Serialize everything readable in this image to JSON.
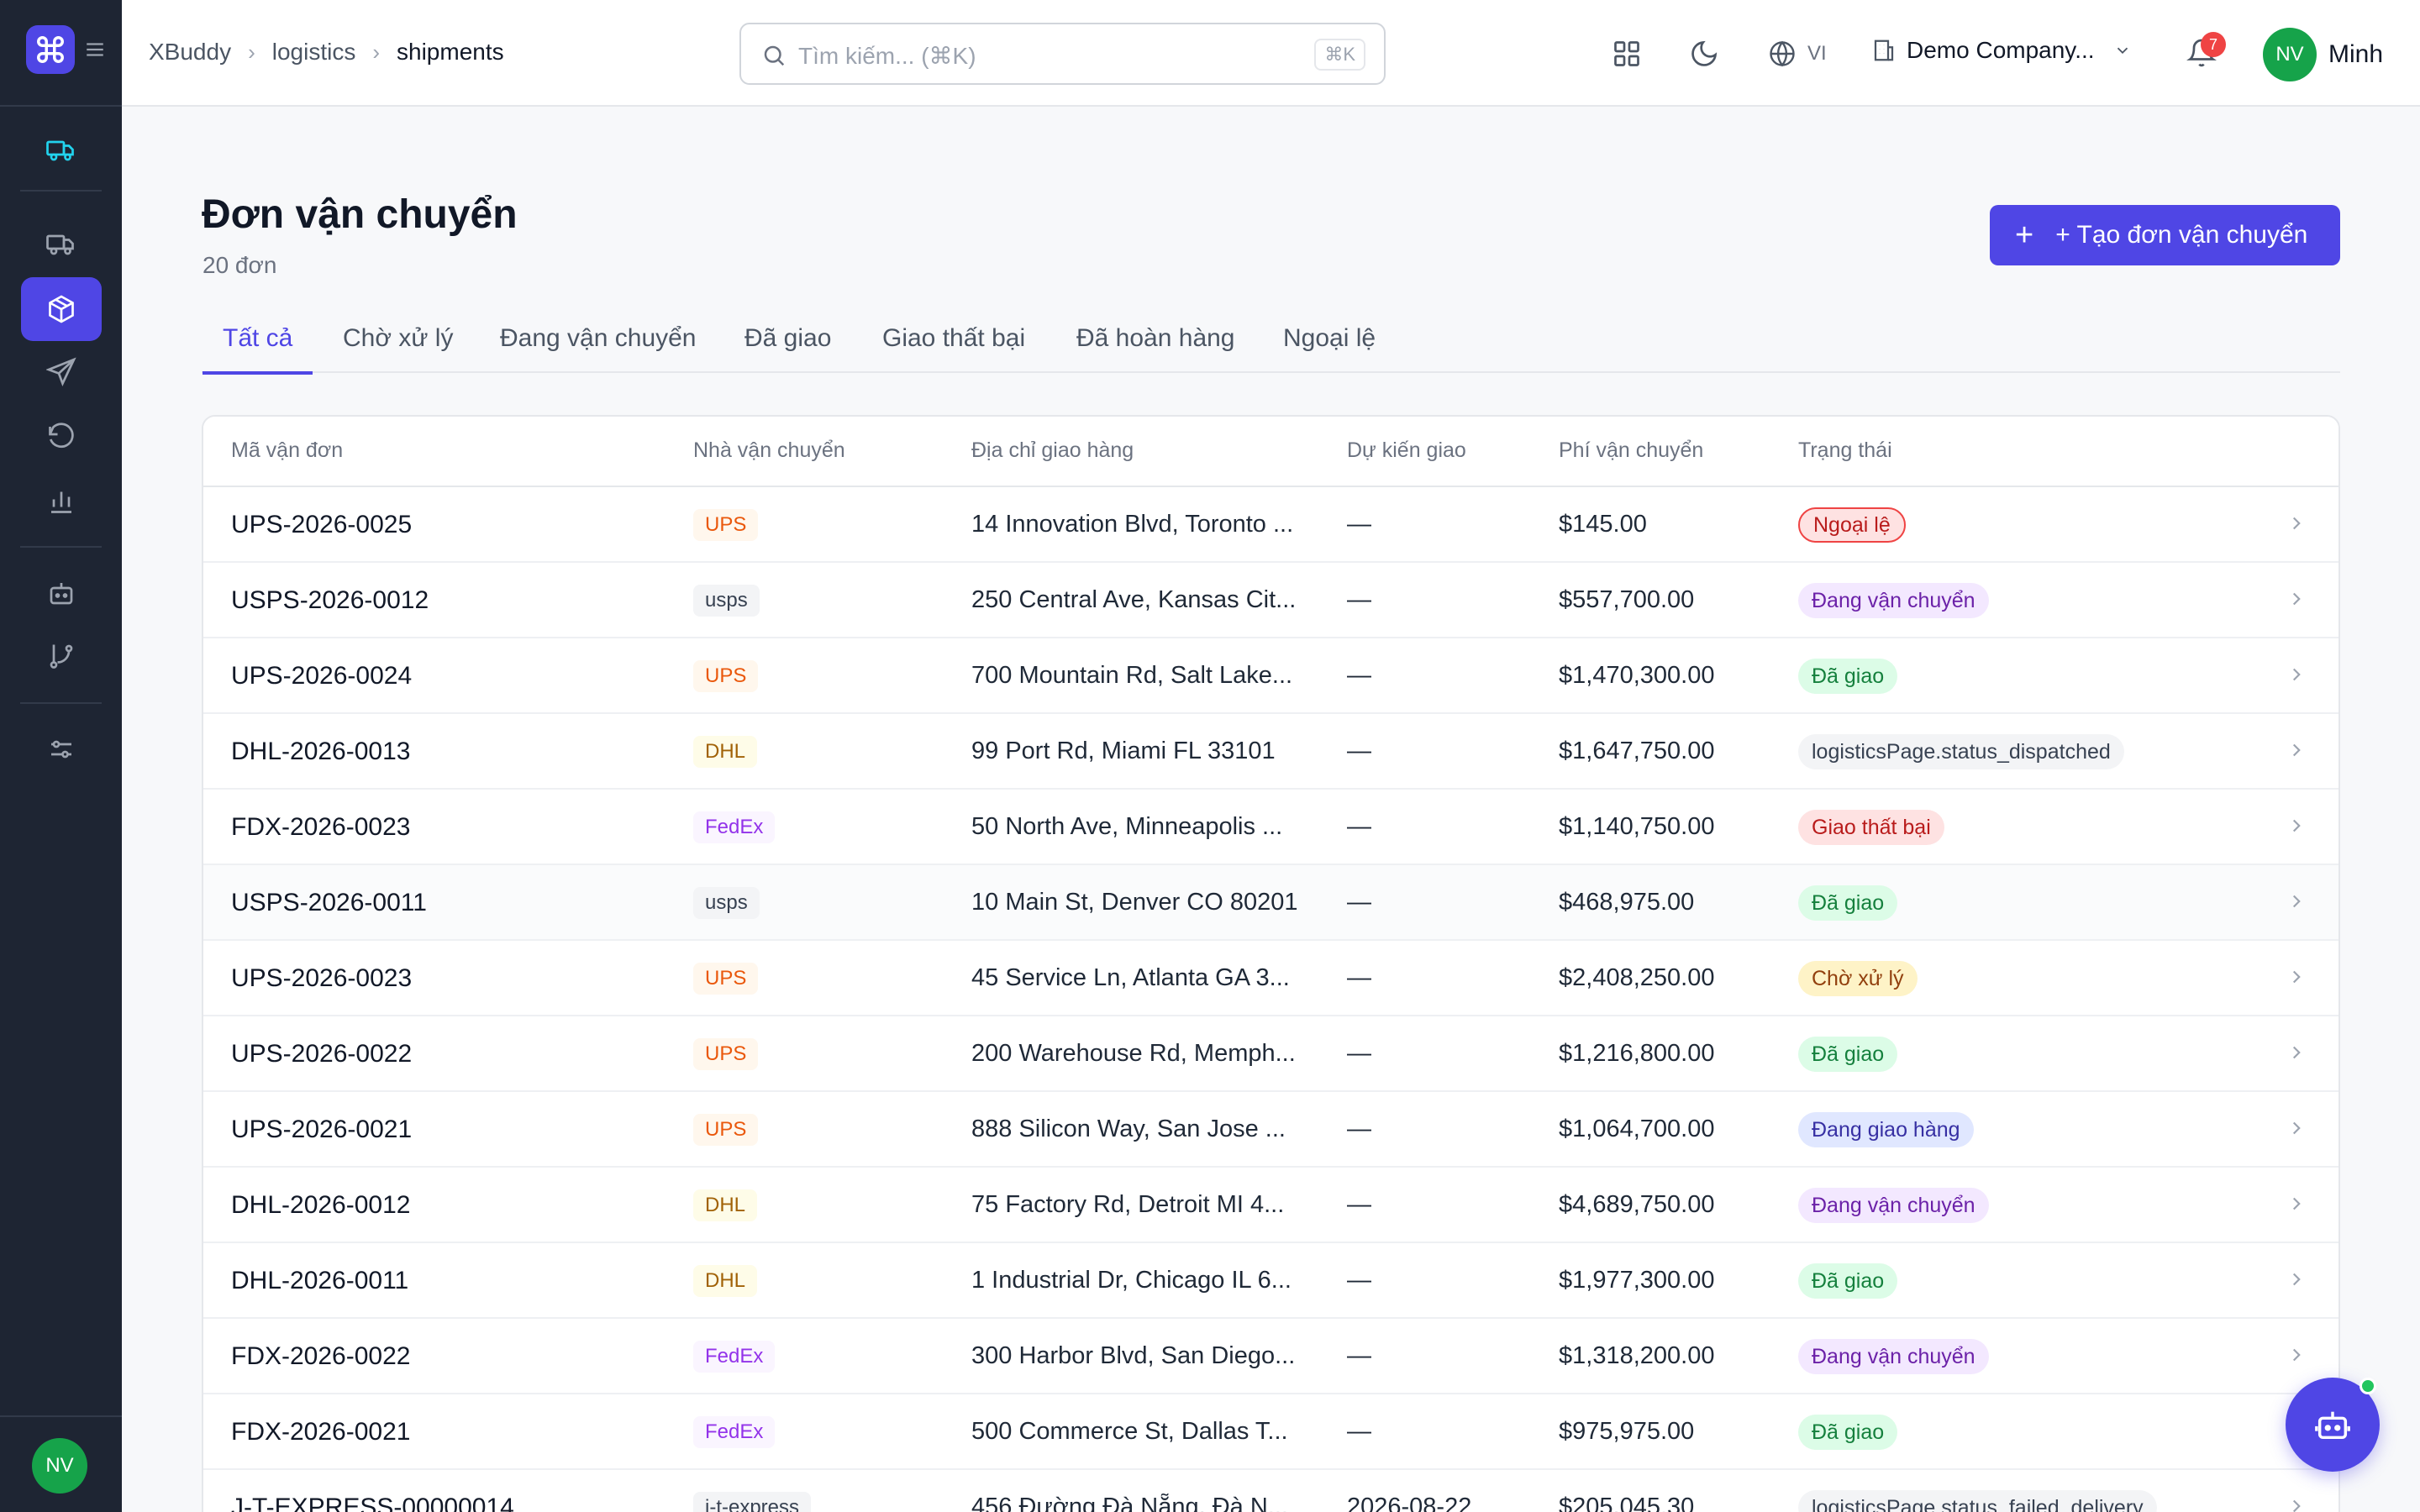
{
  "app": {
    "name": "XBuddy"
  },
  "breadcrumb": [
    "XBuddy",
    "logistics",
    "shipments"
  ],
  "search": {
    "placeholder": "Tìm kiếm... (⌘K)",
    "shortcut": "⌘K"
  },
  "header": {
    "language": "VI",
    "company": "Demo Company...",
    "notifications": "7",
    "user_initials": "NV",
    "user_name": "Minh"
  },
  "sidebar": {
    "items": [
      {
        "icon": "truck-icon",
        "active": false
      },
      {
        "icon": "truck-icon",
        "active": false
      },
      {
        "icon": "package-icon",
        "active": true
      },
      {
        "icon": "send-icon",
        "active": false
      },
      {
        "icon": "rotate-ccw-icon",
        "active": false
      },
      {
        "icon": "bar-chart-icon",
        "active": false
      },
      {
        "icon": "bot-icon",
        "active": false
      },
      {
        "icon": "git-branch-icon",
        "active": false
      },
      {
        "icon": "sliders-icon",
        "active": false
      }
    ],
    "avatar_initials": "NV"
  },
  "page": {
    "title": "Đơn vận chuyển",
    "subtitle": "20 đơn",
    "create_button": "+ Tạo đơn vận chuyển"
  },
  "tabs": [
    {
      "label": "Tất cả",
      "active": true
    },
    {
      "label": "Chờ xử lý",
      "active": false
    },
    {
      "label": "Đang vận chuyển",
      "active": false
    },
    {
      "label": "Đã giao",
      "active": false
    },
    {
      "label": "Giao thất bại",
      "active": false
    },
    {
      "label": "Đã hoàn hàng",
      "active": false
    },
    {
      "label": "Ngoại lệ",
      "active": false
    }
  ],
  "table": {
    "columns": [
      "Mã vận đơn",
      "Nhà vận chuyển",
      "Địa chỉ giao hàng",
      "Dự kiến giao",
      "Phí vận chuyển",
      "Trạng thái"
    ],
    "rows": [
      {
        "code": "UPS-2026-0025",
        "carrier": "UPS",
        "address": "14 Innovation Blvd, Toronto ...",
        "eta": "—",
        "fee": "$145.00",
        "status": "Ngoại lệ",
        "status_kind": "exception"
      },
      {
        "code": "USPS-2026-0012",
        "carrier": "usps",
        "address": "250 Central Ave, Kansas Cit...",
        "eta": "—",
        "fee": "$557,700.00",
        "status": "Đang vận chuyển",
        "status_kind": "transit"
      },
      {
        "code": "UPS-2026-0024",
        "carrier": "UPS",
        "address": "700 Mountain Rd, Salt Lake...",
        "eta": "—",
        "fee": "$1,470,300.00",
        "status": "Đã giao",
        "status_kind": "delivered"
      },
      {
        "code": "DHL-2026-0013",
        "carrier": "DHL",
        "address": "99 Port Rd, Miami FL 33101",
        "eta": "—",
        "fee": "$1,647,750.00",
        "status": "logisticsPage.status_dispatched",
        "status_kind": "neutral"
      },
      {
        "code": "FDX-2026-0023",
        "carrier": "FedEx",
        "address": "50 North Ave, Minneapolis ...",
        "eta": "—",
        "fee": "$1,140,750.00",
        "status": "Giao thất bại",
        "status_kind": "failed"
      },
      {
        "code": "USPS-2026-0011",
        "carrier": "usps",
        "address": "10 Main St, Denver CO 80201",
        "eta": "—",
        "fee": "$468,975.00",
        "status": "Đã giao",
        "status_kind": "delivered"
      },
      {
        "code": "UPS-2026-0023",
        "carrier": "UPS",
        "address": "45 Service Ln, Atlanta GA 3...",
        "eta": "—",
        "fee": "$2,408,250.00",
        "status": "Chờ xử lý",
        "status_kind": "pending"
      },
      {
        "code": "UPS-2026-0022",
        "carrier": "UPS",
        "address": "200 Warehouse Rd, Memph...",
        "eta": "—",
        "fee": "$1,216,800.00",
        "status": "Đã giao",
        "status_kind": "delivered"
      },
      {
        "code": "UPS-2026-0021",
        "carrier": "UPS",
        "address": "888 Silicon Way, San Jose ...",
        "eta": "—",
        "fee": "$1,064,700.00",
        "status": "Đang giao hàng",
        "status_kind": "delivering"
      },
      {
        "code": "DHL-2026-0012",
        "carrier": "DHL",
        "address": "75 Factory Rd, Detroit MI 4...",
        "eta": "—",
        "fee": "$4,689,750.00",
        "status": "Đang vận chuyển",
        "status_kind": "transit"
      },
      {
        "code": "DHL-2026-0011",
        "carrier": "DHL",
        "address": "1 Industrial Dr, Chicago IL 6...",
        "eta": "—",
        "fee": "$1,977,300.00",
        "status": "Đã giao",
        "status_kind": "delivered"
      },
      {
        "code": "FDX-2026-0022",
        "carrier": "FedEx",
        "address": "300 Harbor Blvd, San Diego...",
        "eta": "—",
        "fee": "$1,318,200.00",
        "status": "Đang vận chuyển",
        "status_kind": "transit"
      },
      {
        "code": "FDX-2026-0021",
        "carrier": "FedEx",
        "address": "500 Commerce St, Dallas T...",
        "eta": "—",
        "fee": "$975,975.00",
        "status": "Đã giao",
        "status_kind": "delivered"
      },
      {
        "code": "J-T-EXPRESS-00000014",
        "carrier": "j-t-express",
        "address": "456 Đường Đà Nẵng, Đà N...",
        "eta": "2026-08-22",
        "fee": "$205,045.30",
        "status": "logisticsPage.status_failed_delivery",
        "status_kind": "neutral"
      }
    ]
  },
  "colors": {
    "accent": "#4f46e5",
    "sidebar_bg": "#1e2533",
    "avatar": "#16a34a",
    "carrier_ups": "#ea580c",
    "carrier_dhl": "#ca8a04",
    "carrier_fedex": "#9333ea",
    "carrier_default": "#374151"
  }
}
